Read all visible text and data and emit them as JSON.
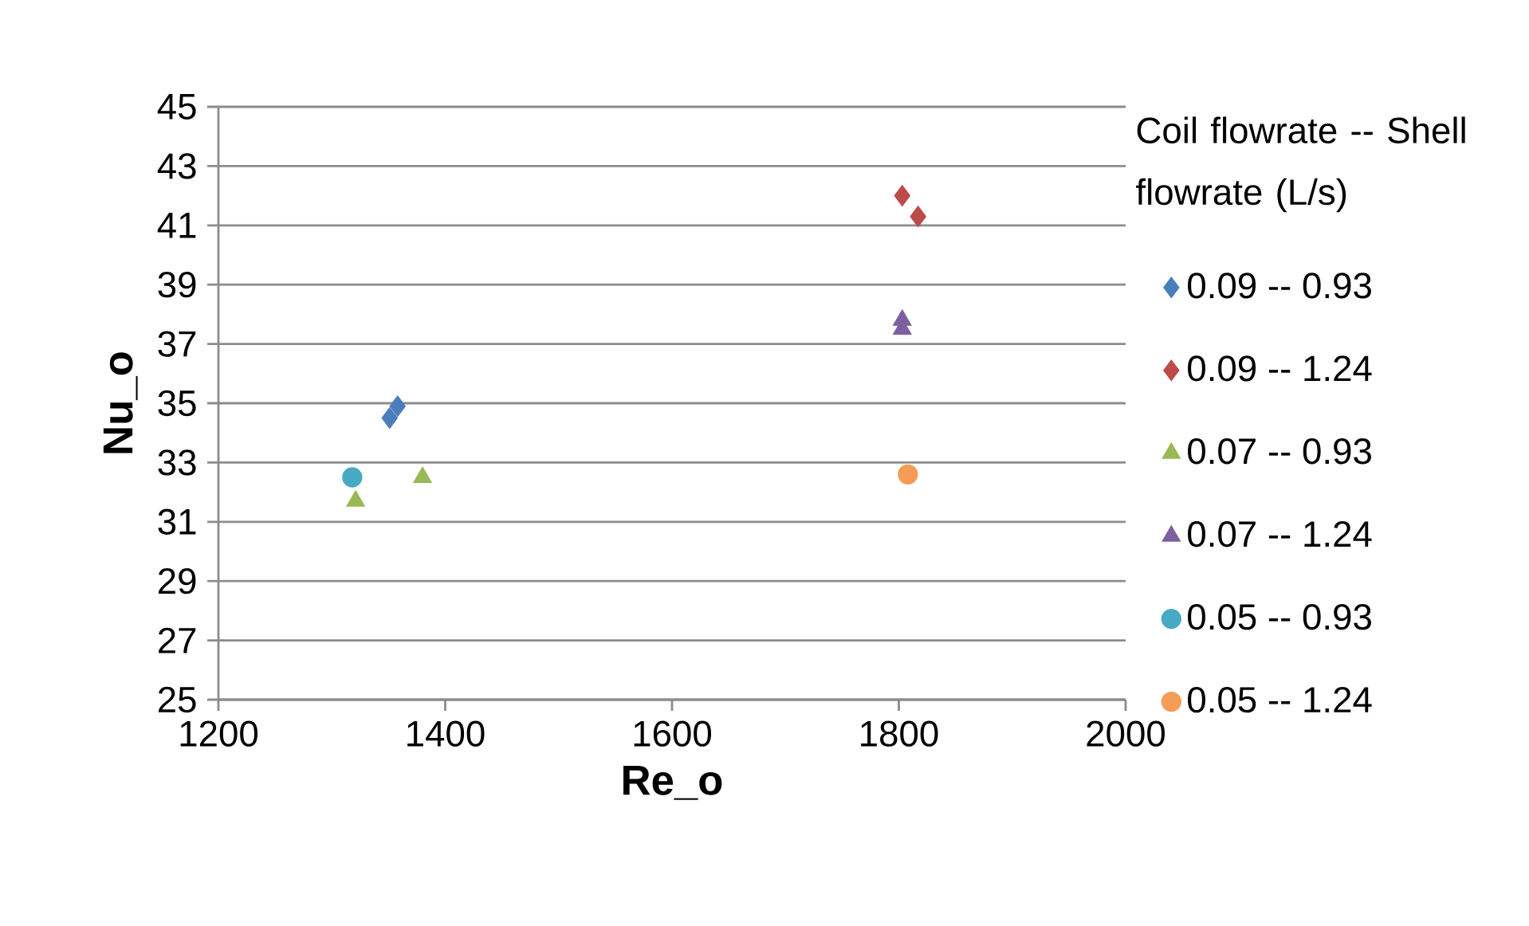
{
  "chart_data": {
    "type": "scatter",
    "xlabel": "Re_o",
    "ylabel": "Nu_o",
    "legend_title": "Coil flowrate -- Shell flowrate (L/s)",
    "legend": "right",
    "grid": "y",
    "xlim": [
      1200,
      2000
    ],
    "xticks": [
      1200,
      1400,
      1600,
      1800,
      2000
    ],
    "ylim": [
      25,
      45
    ],
    "yticks": [
      25,
      27,
      29,
      31,
      33,
      35,
      37,
      39,
      41,
      43,
      45
    ],
    "series": [
      {
        "name": "0.09 -- 0.93",
        "color": "#4a7ebb",
        "marker": "diamond",
        "x": [
          1351,
          1358
        ],
        "values": [
          34.5,
          34.9
        ]
      },
      {
        "name": "0.09 -- 1.24",
        "color": "#be4b48",
        "marker": "diamond",
        "x": [
          1803,
          1817
        ],
        "values": [
          42.0,
          41.3
        ]
      },
      {
        "name": "0.07 -- 0.93",
        "color": "#98b954",
        "marker": "triangle",
        "x": [
          1321,
          1380
        ],
        "values": [
          31.7,
          32.5
        ]
      },
      {
        "name": "0.07 -- 1.24",
        "color": "#7d60a0",
        "marker": "triangle",
        "x": [
          1803,
          1803
        ],
        "values": [
          37.5,
          37.8
        ]
      },
      {
        "name": "0.05 -- 0.93",
        "color": "#46aac5",
        "marker": "circle",
        "x": [
          1318
        ],
        "values": [
          32.5
        ]
      },
      {
        "name": "0.05 -- 1.24",
        "color": "#f59d56",
        "marker": "circle",
        "x": [
          1808
        ],
        "values": [
          32.6
        ]
      }
    ]
  }
}
